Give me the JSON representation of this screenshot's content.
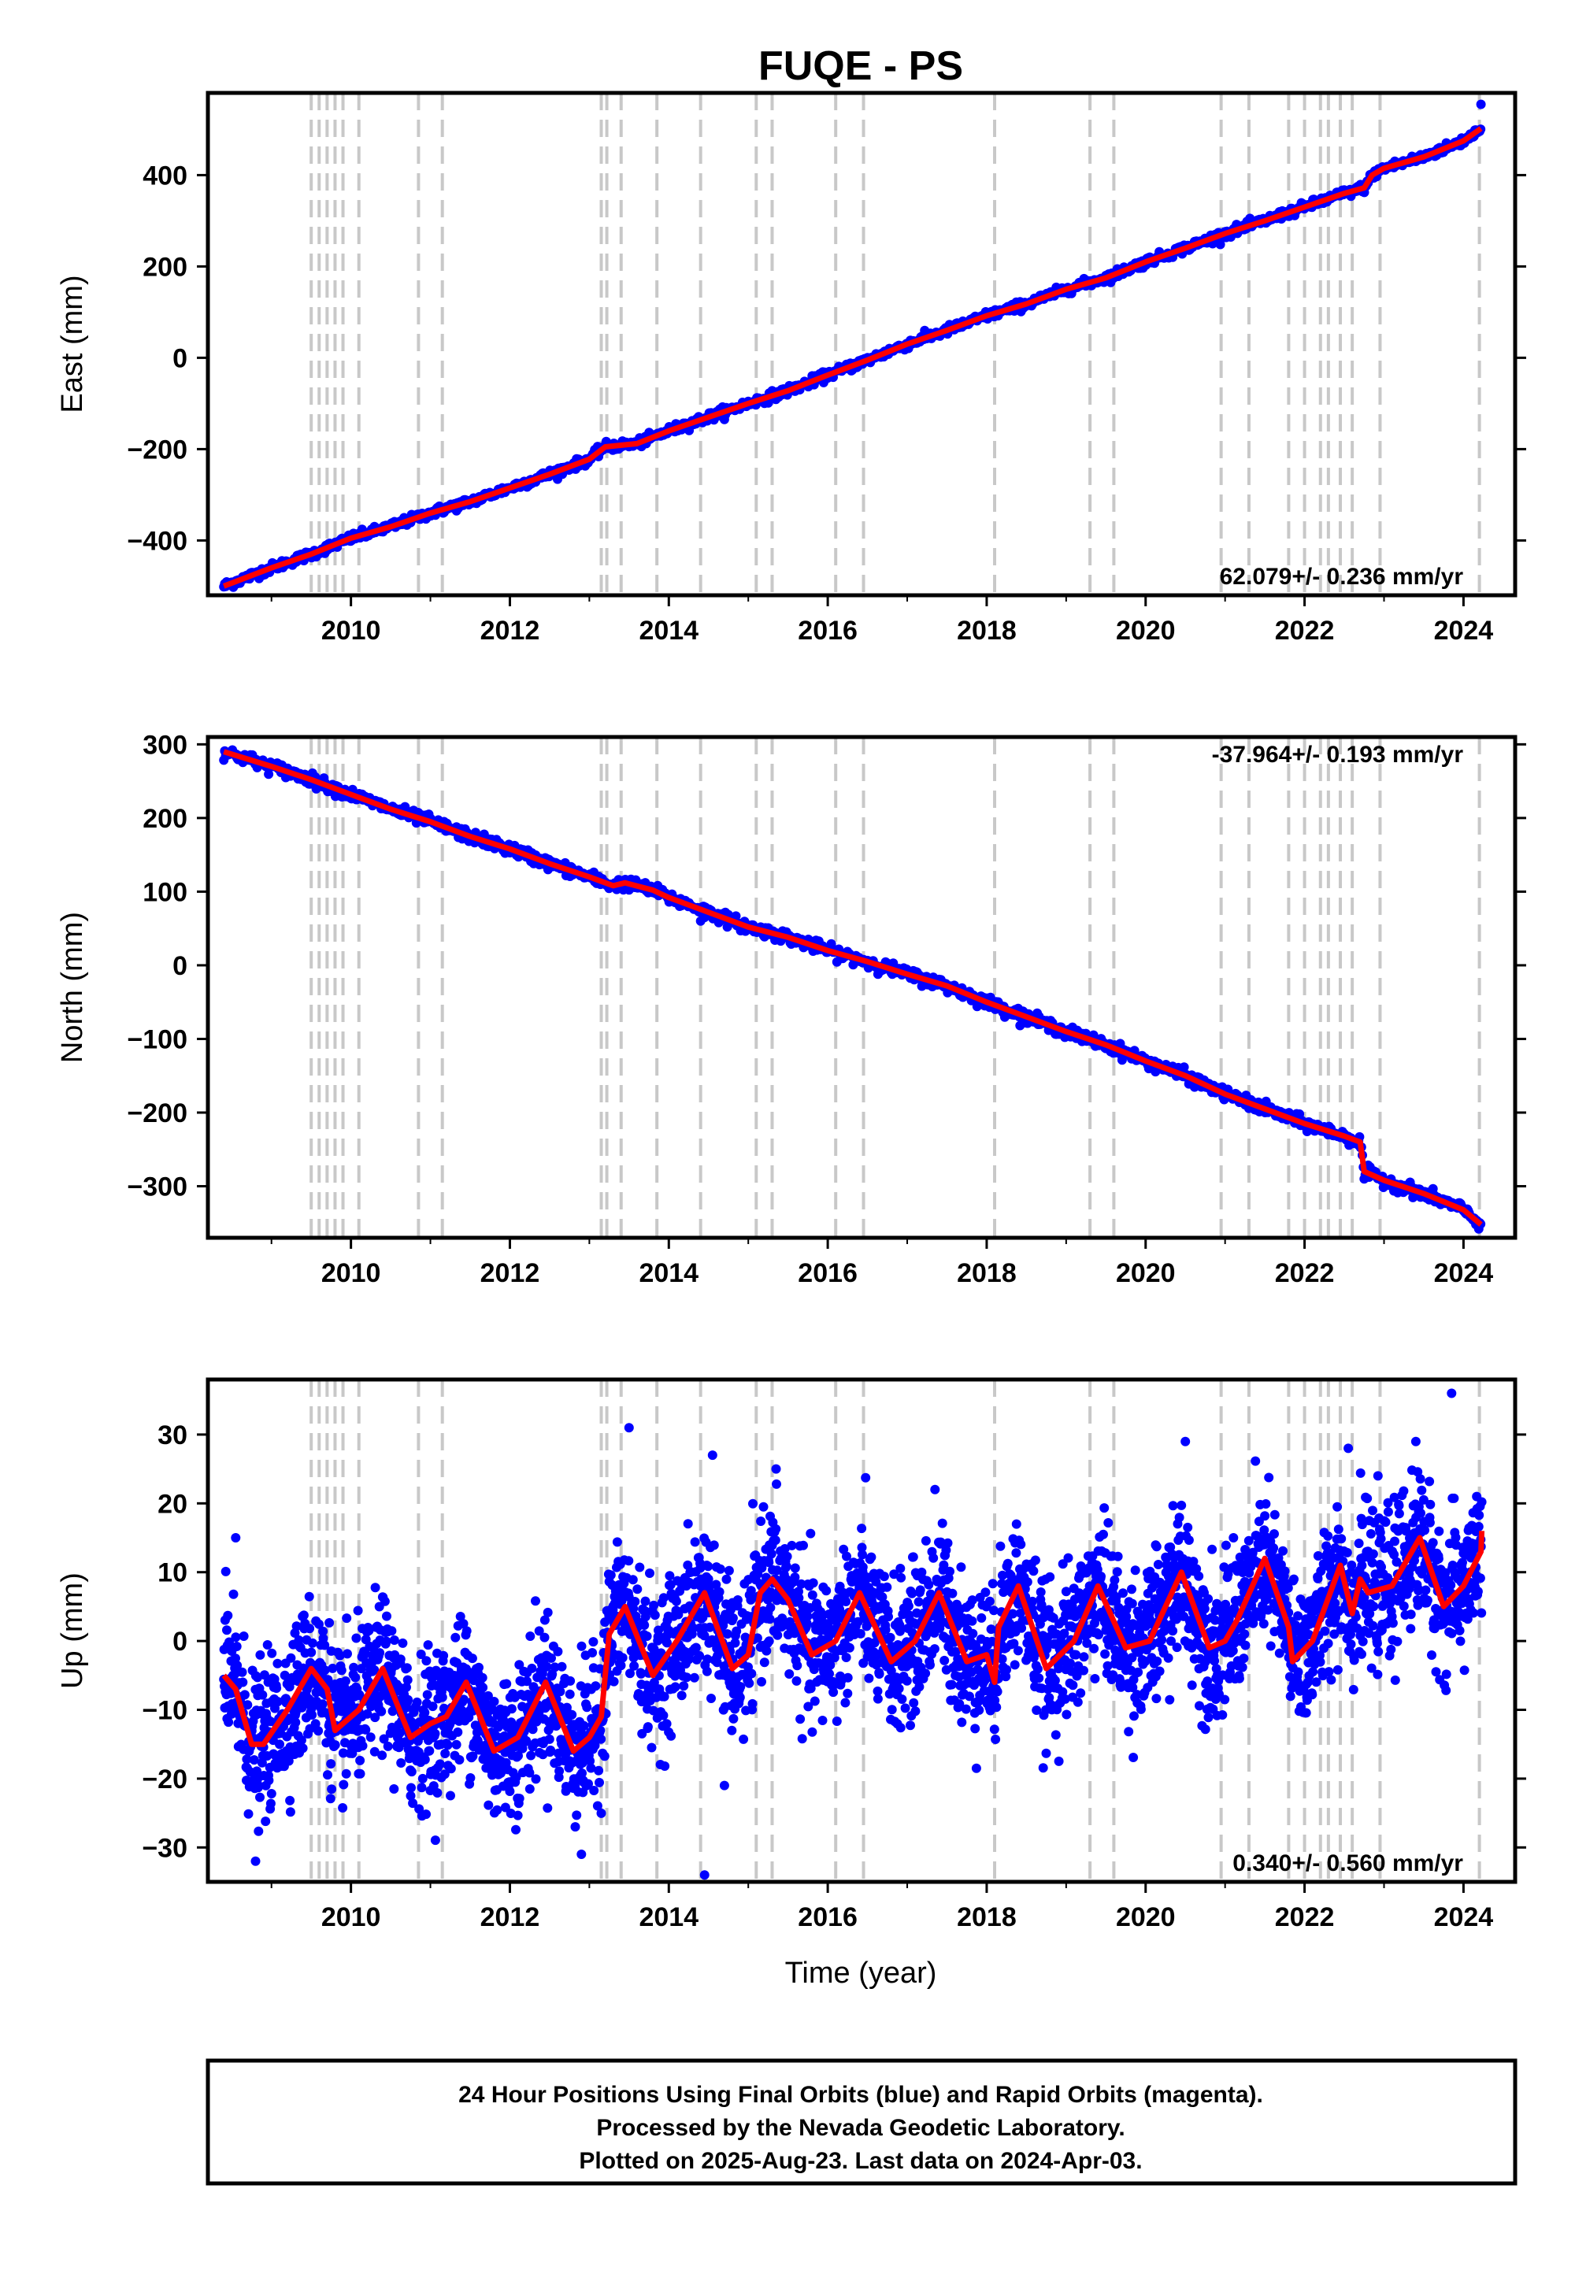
{
  "title": "FUQE - PS",
  "colors": {
    "final": "#0000ff",
    "fit": "#ff0000",
    "steps": "#c8c8c8",
    "frame": "#000000"
  },
  "xlabel": "Time (year)",
  "footer": {
    "line1": "24 Hour Positions Using Final Orbits (blue) and Rapid Orbits (magenta).",
    "line2": "Processed by the Nevada Geodetic Laboratory.",
    "line3": "Plotted on 2025-Aug-23. Last data on 2024-Apr-03."
  },
  "chart_data": [
    {
      "type": "scatter",
      "id": "east",
      "ylabel": "East (mm)",
      "rate": "62.079+/- 0.236 mm/yr",
      "xlim": [
        2008.2,
        2024.65
      ],
      "ylim": [
        -520,
        580
      ],
      "xticks": [
        2010,
        2012,
        2014,
        2016,
        2018,
        2020,
        2022,
        2024
      ],
      "yticks": [
        -400,
        -200,
        0,
        200,
        400
      ],
      "steps": [
        2009.5,
        2009.6,
        2009.7,
        2009.8,
        2009.9,
        2010.1,
        2010.85,
        2011.15,
        2013.15,
        2013.22,
        2013.4,
        2013.85,
        2014.4,
        2015.1,
        2015.3,
        2016.1,
        2016.45,
        2018.1,
        2019.3,
        2019.6,
        2020.95,
        2021.3,
        2021.8,
        2022.0,
        2022.2,
        2022.3,
        2022.45,
        2022.6,
        2022.95,
        2024.2
      ],
      "trend": [
        [
          2008.4,
          -500
        ],
        [
          2009.0,
          -460
        ],
        [
          2009.5,
          -430
        ],
        [
          2010.0,
          -395
        ],
        [
          2010.5,
          -370
        ],
        [
          2011.0,
          -340
        ],
        [
          2011.5,
          -315
        ],
        [
          2012.0,
          -285
        ],
        [
          2012.5,
          -255
        ],
        [
          2013.0,
          -222
        ],
        [
          2013.2,
          -195
        ],
        [
          2013.6,
          -188
        ],
        [
          2014.0,
          -160
        ],
        [
          2014.5,
          -130
        ],
        [
          2015.0,
          -100
        ],
        [
          2015.5,
          -72
        ],
        [
          2016.0,
          -38
        ],
        [
          2016.5,
          -5
        ],
        [
          2017.0,
          30
        ],
        [
          2017.5,
          60
        ],
        [
          2018.0,
          92
        ],
        [
          2018.5,
          118
        ],
        [
          2019.0,
          150
        ],
        [
          2019.5,
          175
        ],
        [
          2020.0,
          210
        ],
        [
          2020.5,
          240
        ],
        [
          2021.0,
          272
        ],
        [
          2021.5,
          300
        ],
        [
          2022.0,
          330
        ],
        [
          2022.5,
          360
        ],
        [
          2022.75,
          372
        ],
        [
          2022.85,
          400
        ],
        [
          2023.0,
          415
        ],
        [
          2023.5,
          440
        ],
        [
          2024.0,
          475
        ],
        [
          2024.22,
          502
        ]
      ],
      "outliers": [
        [
          2024.22,
          555
        ]
      ]
    },
    {
      "type": "scatter",
      "id": "north",
      "ylabel": "North (mm)",
      "rate": "-37.964+/- 0.193 mm/yr",
      "xlim": [
        2008.2,
        2024.65
      ],
      "ylim": [
        -370,
        310
      ],
      "xticks": [
        2010,
        2012,
        2014,
        2016,
        2018,
        2020,
        2022,
        2024
      ],
      "yticks": [
        -300,
        -200,
        -100,
        0,
        100,
        200,
        300
      ],
      "steps": [
        2009.5,
        2009.6,
        2009.7,
        2009.8,
        2009.9,
        2010.1,
        2010.85,
        2011.15,
        2013.15,
        2013.22,
        2013.4,
        2013.85,
        2014.4,
        2015.1,
        2015.3,
        2016.1,
        2016.45,
        2018.1,
        2019.3,
        2019.6,
        2020.95,
        2021.3,
        2021.8,
        2022.0,
        2022.2,
        2022.3,
        2022.45,
        2022.6,
        2022.95,
        2024.2
      ],
      "trend": [
        [
          2008.4,
          290
        ],
        [
          2009.0,
          270
        ],
        [
          2009.5,
          252
        ],
        [
          2010.0,
          232
        ],
        [
          2010.5,
          212
        ],
        [
          2011.0,
          195
        ],
        [
          2011.5,
          175
        ],
        [
          2012.0,
          158
        ],
        [
          2012.5,
          138
        ],
        [
          2013.0,
          120
        ],
        [
          2013.3,
          108
        ],
        [
          2013.45,
          112
        ],
        [
          2013.8,
          102
        ],
        [
          2014.0,
          92
        ],
        [
          2014.5,
          72
        ],
        [
          2015.0,
          52
        ],
        [
          2015.5,
          38
        ],
        [
          2016.0,
          20
        ],
        [
          2016.5,
          5
        ],
        [
          2017.0,
          -12
        ],
        [
          2017.5,
          -28
        ],
        [
          2018.0,
          -50
        ],
        [
          2018.5,
          -70
        ],
        [
          2019.0,
          -90
        ],
        [
          2019.5,
          -108
        ],
        [
          2020.0,
          -130
        ],
        [
          2020.5,
          -150
        ],
        [
          2021.0,
          -175
        ],
        [
          2021.5,
          -195
        ],
        [
          2022.0,
          -215
        ],
        [
          2022.5,
          -232
        ],
        [
          2022.7,
          -240
        ],
        [
          2022.75,
          -280
        ],
        [
          2023.0,
          -292
        ],
        [
          2023.5,
          -310
        ],
        [
          2024.0,
          -332
        ],
        [
          2024.22,
          -352
        ]
      ],
      "outliers": [
        [
          2014.45,
          65
        ],
        [
          2014.4,
          60
        ],
        [
          2022.75,
          -290
        ]
      ]
    },
    {
      "type": "scatter",
      "id": "up",
      "ylabel": "Up (mm)",
      "rate": "0.340+/- 0.560 mm/yr",
      "xlim": [
        2008.2,
        2024.65
      ],
      "ylim": [
        -35,
        38
      ],
      "xticks": [
        2010,
        2012,
        2014,
        2016,
        2018,
        2020,
        2022,
        2024
      ],
      "yticks": [
        -30,
        -20,
        -10,
        0,
        10,
        20,
        30
      ],
      "steps": [
        2009.5,
        2009.6,
        2009.7,
        2009.8,
        2009.9,
        2010.1,
        2010.85,
        2011.15,
        2013.15,
        2013.22,
        2013.4,
        2013.85,
        2014.4,
        2015.1,
        2015.3,
        2016.1,
        2016.45,
        2018.1,
        2019.3,
        2019.6,
        2020.95,
        2021.3,
        2021.8,
        2022.0,
        2022.2,
        2022.3,
        2022.45,
        2022.6,
        2022.95,
        2024.2
      ],
      "fit": [
        [
          2008.4,
          -5
        ],
        [
          2008.55,
          -7
        ],
        [
          2008.75,
          -15
        ],
        [
          2008.9,
          -15
        ],
        [
          2009.2,
          -10
        ],
        [
          2009.5,
          -4
        ],
        [
          2009.7,
          -7
        ],
        [
          2009.8,
          -13
        ],
        [
          2010.1,
          -10
        ],
        [
          2010.4,
          -4
        ],
        [
          2010.75,
          -14
        ],
        [
          2011.0,
          -12
        ],
        [
          2011.2,
          -11
        ],
        [
          2011.45,
          -6
        ],
        [
          2011.8,
          -16
        ],
        [
          2012.1,
          -14
        ],
        [
          2012.45,
          -6
        ],
        [
          2012.8,
          -16
        ],
        [
          2013.0,
          -14
        ],
        [
          2013.15,
          -11
        ],
        [
          2013.25,
          1
        ],
        [
          2013.45,
          5
        ],
        [
          2013.8,
          -5
        ],
        [
          2014.1,
          0
        ],
        [
          2014.45,
          7
        ],
        [
          2014.8,
          -4
        ],
        [
          2015.0,
          -2
        ],
        [
          2015.15,
          7
        ],
        [
          2015.3,
          9
        ],
        [
          2015.5,
          6
        ],
        [
          2015.8,
          -2
        ],
        [
          2016.1,
          0
        ],
        [
          2016.4,
          7
        ],
        [
          2016.8,
          -3
        ],
        [
          2017.1,
          0
        ],
        [
          2017.4,
          7
        ],
        [
          2017.75,
          -3
        ],
        [
          2018.0,
          -2
        ],
        [
          2018.1,
          -6
        ],
        [
          2018.15,
          2
        ],
        [
          2018.4,
          8
        ],
        [
          2018.75,
          -4
        ],
        [
          2019.1,
          0
        ],
        [
          2019.4,
          8
        ],
        [
          2019.75,
          -1
        ],
        [
          2020.05,
          0
        ],
        [
          2020.45,
          10
        ],
        [
          2020.8,
          -1
        ],
        [
          2021.0,
          0
        ],
        [
          2021.15,
          3
        ],
        [
          2021.5,
          12
        ],
        [
          2021.8,
          2
        ],
        [
          2021.85,
          -3
        ],
        [
          2022.1,
          0
        ],
        [
          2022.45,
          11
        ],
        [
          2022.6,
          4
        ],
        [
          2022.7,
          9
        ],
        [
          2022.8,
          7
        ],
        [
          2023.1,
          8
        ],
        [
          2023.45,
          15
        ],
        [
          2023.75,
          5
        ],
        [
          2024.0,
          8
        ],
        [
          2024.22,
          13
        ],
        [
          2024.23,
          16
        ]
      ],
      "amp_notes": "scatter noise ~ +/- 6 mm about fit",
      "outliers": [
        [
          2013.5,
          31
        ],
        [
          2014.55,
          27
        ],
        [
          2014.45,
          -34
        ],
        [
          2023.85,
          36
        ],
        [
          2023.4,
          29
        ],
        [
          2015.35,
          25
        ],
        [
          2017.35,
          22
        ],
        [
          2022.55,
          28
        ],
        [
          2020.5,
          29
        ],
        [
          2008.55,
          15
        ],
        [
          2008.8,
          -32
        ],
        [
          2012.9,
          -31
        ],
        [
          2014.7,
          -21
        ]
      ]
    }
  ]
}
